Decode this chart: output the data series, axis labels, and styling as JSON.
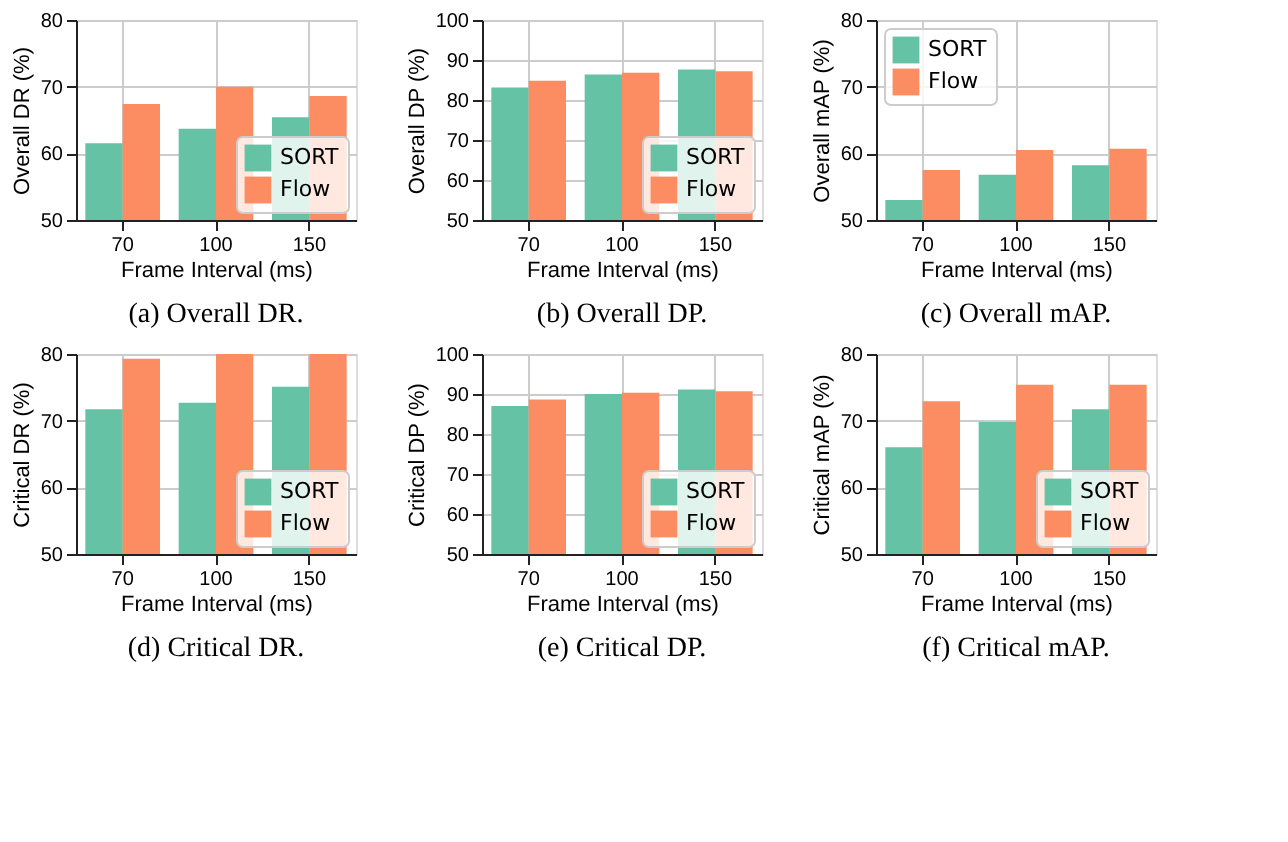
{
  "chart_data": [
    {
      "type": "bar",
      "title": "(a) Overall DR.",
      "xlabel": "Frame Interval (ms)",
      "ylabel": "Overall DR (%)",
      "categories": [
        "70",
        "100",
        "150"
      ],
      "series": [
        {
          "name": "SORT",
          "color": "#66c2a5",
          "values": [
            61.5,
            63.7,
            65.4
          ]
        },
        {
          "name": "Flow",
          "color": "#fc8d62",
          "values": [
            67.4,
            70.0,
            68.6
          ]
        }
      ],
      "ylim": [
        50,
        80
      ],
      "yticks": [
        50,
        60,
        70,
        80
      ],
      "grid": true,
      "legend": "bottom right"
    },
    {
      "type": "bar",
      "title": "(b) Overall DP.",
      "xlabel": "Frame Interval (ms)",
      "ylabel": "Overall DP (%)",
      "categories": [
        "70",
        "100",
        "150"
      ],
      "series": [
        {
          "name": "SORT",
          "color": "#66c2a5",
          "values": [
            83.1,
            86.4,
            87.6
          ]
        },
        {
          "name": "Flow",
          "color": "#fc8d62",
          "values": [
            84.8,
            86.8,
            87.2
          ]
        }
      ],
      "ylim": [
        50,
        100
      ],
      "yticks": [
        50,
        60,
        70,
        80,
        90,
        100
      ],
      "grid": true,
      "legend": "bottom right"
    },
    {
      "type": "bar",
      "title": "(c) Overall mAP.",
      "xlabel": "Frame Interval (ms)",
      "ylabel": "Overall mAP (%)",
      "categories": [
        "70",
        "100",
        "150"
      ],
      "series": [
        {
          "name": "SORT",
          "color": "#66c2a5",
          "values": [
            53.0,
            56.8,
            58.2
          ]
        },
        {
          "name": "Flow",
          "color": "#fc8d62",
          "values": [
            57.5,
            60.5,
            60.7
          ]
        }
      ],
      "ylim": [
        50,
        80
      ],
      "yticks": [
        50,
        60,
        70,
        80
      ],
      "grid": true,
      "legend": "top left"
    },
    {
      "type": "bar",
      "title": "(d) Critical DR.",
      "xlabel": "Frame Interval (ms)",
      "ylabel": "Critical DR (%)",
      "categories": [
        "70",
        "100",
        "150"
      ],
      "series": [
        {
          "name": "SORT",
          "color": "#66c2a5",
          "values": [
            71.7,
            72.7,
            75.1
          ]
        },
        {
          "name": "Flow",
          "color": "#fc8d62",
          "values": [
            79.3,
            80.0,
            80.0
          ]
        }
      ],
      "ylim": [
        50,
        80
      ],
      "yticks": [
        50,
        60,
        70,
        80
      ],
      "grid": true,
      "legend": "bottom right"
    },
    {
      "type": "bar",
      "title": "(e) Critical DP.",
      "xlabel": "Frame Interval (ms)",
      "ylabel": "Critical DP (%)",
      "categories": [
        "70",
        "100",
        "150"
      ],
      "series": [
        {
          "name": "SORT",
          "color": "#66c2a5",
          "values": [
            87.0,
            90.0,
            91.1
          ]
        },
        {
          "name": "Flow",
          "color": "#fc8d62",
          "values": [
            88.6,
            90.3,
            90.7
          ]
        }
      ],
      "ylim": [
        50,
        100
      ],
      "yticks": [
        50,
        60,
        70,
        80,
        90,
        100
      ],
      "grid": true,
      "legend": "bottom right"
    },
    {
      "type": "bar",
      "title": "(f) Critical mAP.",
      "xlabel": "Frame Interval (ms)",
      "ylabel": "Critical mAP (%)",
      "categories": [
        "70",
        "100",
        "150"
      ],
      "series": [
        {
          "name": "SORT",
          "color": "#66c2a5",
          "values": [
            66.0,
            69.8,
            71.7
          ]
        },
        {
          "name": "Flow",
          "color": "#fc8d62",
          "values": [
            72.9,
            75.4,
            75.4
          ]
        }
      ],
      "ylim": [
        50,
        80
      ],
      "yticks": [
        50,
        60,
        70,
        80
      ],
      "grid": true,
      "legend": "bottom right"
    }
  ]
}
